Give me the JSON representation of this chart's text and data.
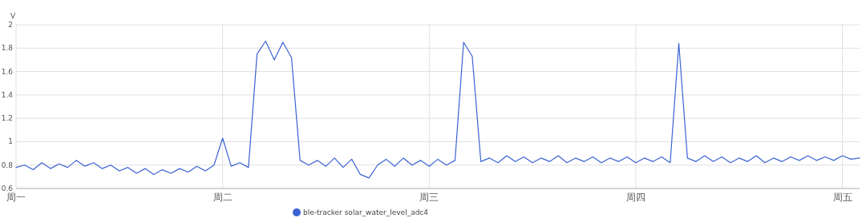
{
  "chart_data": {
    "type": "line",
    "ylabel": "V",
    "categories": [
      "周一",
      null,
      null,
      null,
      null,
      null,
      null,
      null,
      null,
      null,
      null,
      null,
      null,
      null,
      null,
      null,
      null,
      null,
      null,
      null,
      null,
      null,
      null,
      null,
      "周二",
      null,
      null,
      null,
      null,
      null,
      null,
      null,
      null,
      null,
      null,
      null,
      null,
      null,
      null,
      null,
      null,
      null,
      null,
      null,
      null,
      null,
      null,
      null,
      "周三",
      null,
      null,
      null,
      null,
      null,
      null,
      null,
      null,
      null,
      null,
      null,
      null,
      null,
      null,
      null,
      null,
      null,
      null,
      null,
      null,
      null,
      null,
      null,
      "周四",
      null,
      null,
      null,
      null,
      null,
      null,
      null,
      null,
      null,
      null,
      null,
      null,
      null,
      null,
      null,
      null,
      null,
      null,
      null,
      null,
      null,
      null,
      null,
      "周五",
      null,
      null
    ],
    "series": [
      {
        "name": "ble-tracker solar_water_level_adc4",
        "color": "#3b63d3",
        "values": [
          0.78,
          0.8,
          0.76,
          0.82,
          0.77,
          0.81,
          0.78,
          0.84,
          0.79,
          0.82,
          0.77,
          0.8,
          0.75,
          0.78,
          0.73,
          0.77,
          0.72,
          0.76,
          0.73,
          0.77,
          0.74,
          0.79,
          0.75,
          0.8,
          1.03,
          0.79,
          0.82,
          0.78,
          1.75,
          1.86,
          1.7,
          1.85,
          1.72,
          0.84,
          0.8,
          0.84,
          0.79,
          0.86,
          0.78,
          0.85,
          0.72,
          0.69,
          0.8,
          0.85,
          0.79,
          0.86,
          0.8,
          0.84,
          0.79,
          0.85,
          0.8,
          0.84,
          1.85,
          1.73,
          0.83,
          0.86,
          0.82,
          0.88,
          0.83,
          0.87,
          0.82,
          0.86,
          0.83,
          0.88,
          0.82,
          0.86,
          0.83,
          0.87,
          0.82,
          0.86,
          0.83,
          0.87,
          0.82,
          0.86,
          0.83,
          0.87,
          0.82,
          1.84,
          0.86,
          0.83,
          0.88,
          0.83,
          0.87,
          0.82,
          0.86,
          0.83,
          0.88,
          0.82,
          0.86,
          0.83,
          0.87,
          0.84,
          0.88,
          0.84,
          0.87,
          0.84,
          0.88,
          0.85,
          0.86
        ]
      }
    ],
    "ylim": [
      0.6,
      2
    ],
    "yticks": [
      0.6,
      0.8,
      1,
      1.2,
      1.4,
      1.6,
      1.8,
      2
    ],
    "grid": true,
    "legend": "bottom",
    "marker": "none",
    "line_style": "solid"
  }
}
